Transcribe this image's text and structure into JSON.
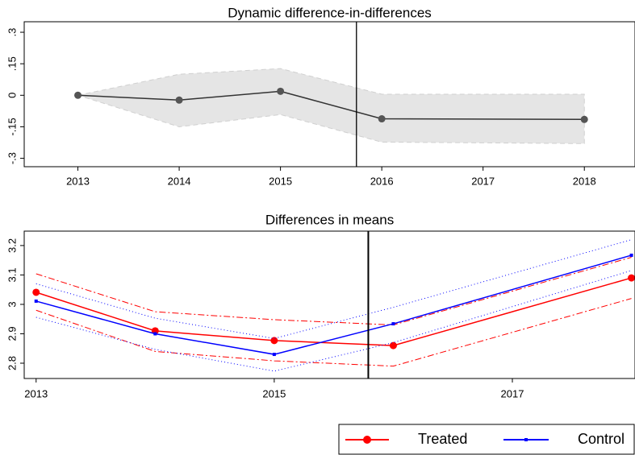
{
  "chart_data": [
    {
      "type": "line",
      "title": "Dynamic difference-in-differences",
      "x": [
        2013,
        2014,
        2015,
        2016,
        2018
      ],
      "series": [
        {
          "color": "#333333",
          "marker_color": "#555555",
          "band_color": "#e5e5e5",
          "values": [
            0,
            -0.023,
            0.019,
            -0.112,
            -0.115
          ],
          "lower": [
            0,
            -0.15,
            -0.092,
            -0.223,
            -0.23
          ],
          "upper": [
            0,
            0.1,
            0.127,
            0.005,
            0.005
          ]
        }
      ],
      "ci_style": "band",
      "marker": "circle",
      "xlim": [
        2012.47,
        2018.5
      ],
      "xticks": [
        2013,
        2014,
        2015,
        2016,
        2017,
        2018
      ],
      "ylim": [
        -0.34,
        0.35
      ],
      "yticks": [
        {
          "value": -0.3,
          "label": "-.3"
        },
        {
          "value": -0.15,
          "label": "-.15"
        },
        0,
        {
          "value": 0.15,
          "label": ".15"
        },
        {
          "value": 0.3,
          "label": ".3"
        }
      ],
      "vline": 2015.75
    },
    {
      "type": "line",
      "title": "Differences in means",
      "x": [
        2013,
        2014,
        2015,
        2016,
        2018
      ],
      "series": [
        {
          "name": "Treated",
          "color": "#ff0000",
          "marker": "circle",
          "values": [
            3.041,
            2.91,
            2.877,
            2.86,
            3.09
          ],
          "lower": [
            2.98,
            2.84,
            2.808,
            2.79,
            3.02
          ],
          "upper": [
            3.104,
            2.975,
            2.948,
            2.93,
            3.16
          ]
        },
        {
          "name": "Control",
          "color": "#0000ff",
          "marker": "square",
          "values": [
            3.011,
            2.9,
            2.83,
            2.934,
            3.167
          ],
          "lower": [
            2.956,
            2.847,
            2.773,
            2.87,
            3.115
          ],
          "upper": [
            3.07,
            2.953,
            2.884,
            2.99,
            3.22
          ]
        }
      ],
      "ci_style": "lines",
      "xlim": [
        2012.9,
        2018.03
      ],
      "xticks": [
        2013,
        2015,
        2017
      ],
      "ylim": [
        2.748,
        3.249
      ],
      "yticks": [
        2.8,
        2.9,
        3,
        3.1,
        3.2
      ],
      "vline": 2015.79
    }
  ]
}
